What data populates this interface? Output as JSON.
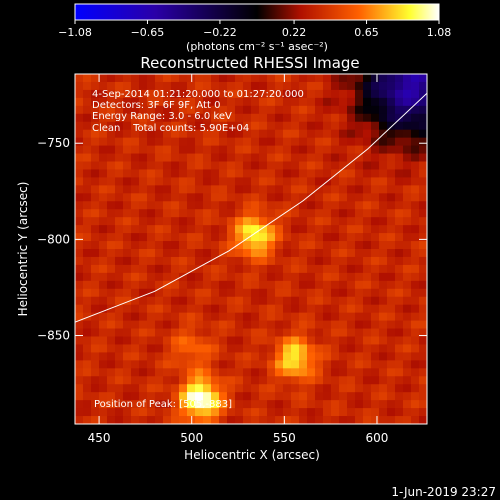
{
  "footer_date": "1-Jun-2019 23:27",
  "chart_data": {
    "type": "heatmap",
    "title": "Reconstructed RHESSI Image",
    "xlabel": "Heliocentric X (arcsec)",
    "ylabel": "Heliocentric Y (arcsec)",
    "xlim": [
      437,
      627
    ],
    "ylim": [
      -896,
      -714
    ],
    "x_ticks": [
      450,
      500,
      550,
      600
    ],
    "y_ticks": [
      -750,
      -800,
      -850
    ],
    "grid": false,
    "colorbar": {
      "unit_label": "(photons cm⁻² s⁻¹ asec⁻²)",
      "range": [
        -1.08,
        1.08
      ],
      "tick_values": [
        -1.08,
        -0.65,
        -0.22,
        0.22,
        0.65,
        1.08
      ],
      "tick_labels": [
        "−1.08",
        "−0.65",
        "−0.22",
        "0.22",
        "0.65",
        "1.08"
      ],
      "colors": [
        "#0000ff",
        "#2a00a8",
        "#000000",
        "#b01000",
        "#ff6000",
        "#ffff30",
        "#ffffff"
      ],
      "position": "top"
    },
    "annotations": [
      "4-Sep-2014 01:21:20.000 to 01:27:20.000",
      "Detectors: 3F 6F 9F, Att 0",
      "Energy Range: 3.0 - 6.0 keV",
      "Clean    Total counts: 5.90E+04",
      "Position of Peak: [505,-883]"
    ],
    "sources": [
      {
        "x": 505,
        "y": -883,
        "peak": 1.08
      },
      {
        "x": 534,
        "y": -798,
        "peak": 0.9
      },
      {
        "x": 556,
        "y": -862,
        "peak": 0.85
      },
      {
        "x": 500,
        "y": -857,
        "peak": 0.55
      }
    ],
    "limb": [
      [
        437,
        -843
      ],
      [
        480,
        -827
      ],
      [
        520,
        -806
      ],
      [
        560,
        -780
      ],
      [
        595,
        -753
      ],
      [
        627,
        -724
      ]
    ]
  }
}
